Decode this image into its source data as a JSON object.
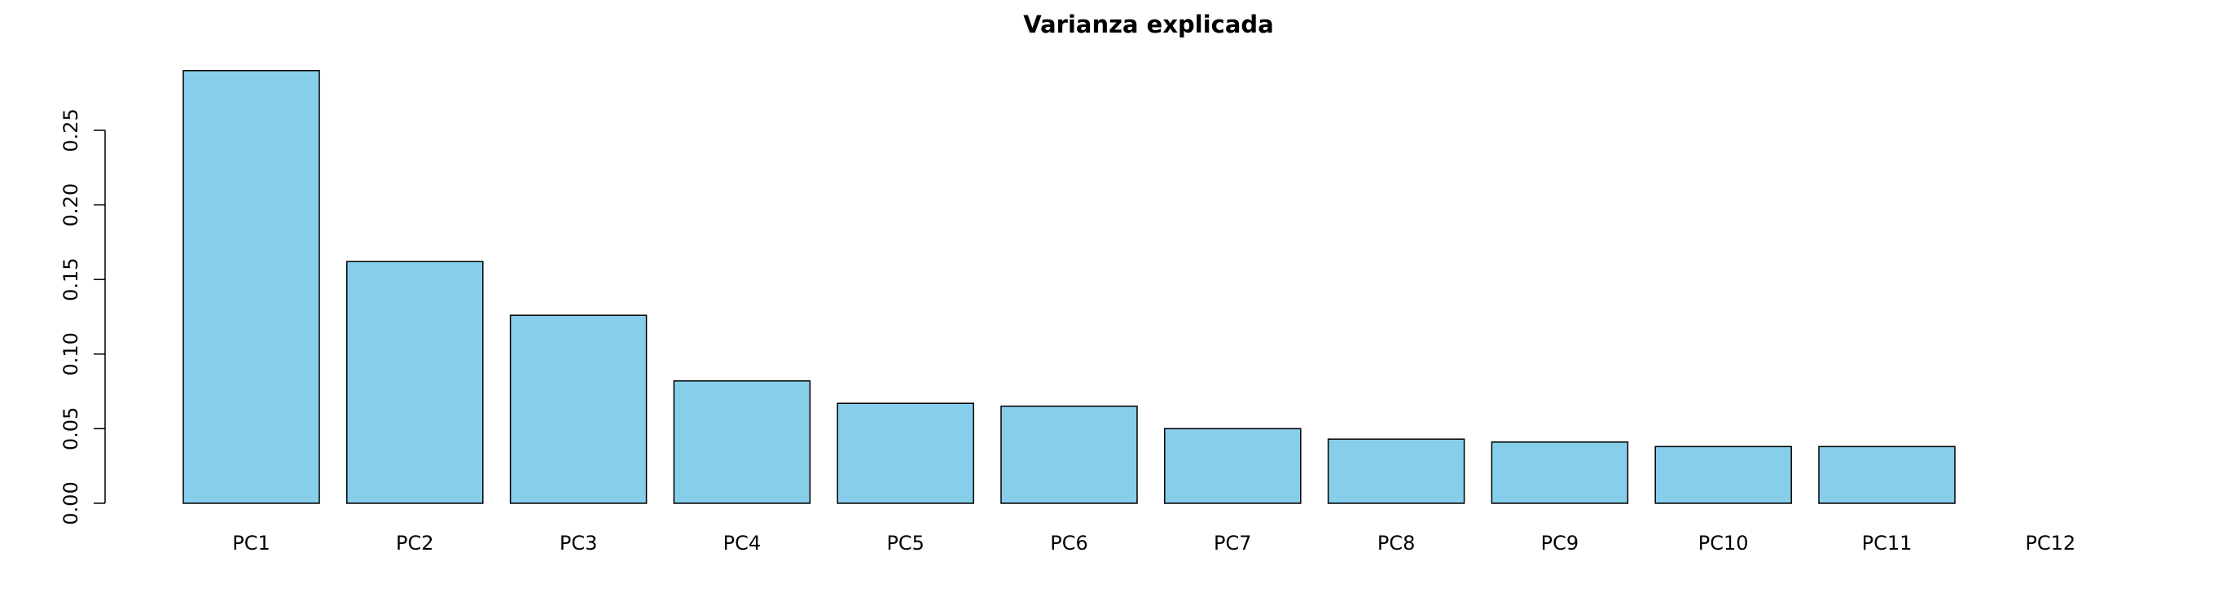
{
  "chart_data": {
    "type": "bar",
    "title": "Varianza explicada",
    "xlabel": "",
    "ylabel": "",
    "categories": [
      "PC1",
      "PC2",
      "PC3",
      "PC4",
      "PC5",
      "PC6",
      "PC7",
      "PC8",
      "PC9",
      "PC10",
      "PC11",
      "PC12"
    ],
    "values": [
      0.29,
      0.162,
      0.126,
      0.082,
      0.067,
      0.065,
      0.05,
      0.043,
      0.041,
      0.038,
      0.038,
      0.0
    ],
    "ylim": [
      0,
      0.29
    ],
    "yticks": [
      0.0,
      0.05,
      0.1,
      0.15,
      0.2,
      0.25
    ],
    "ytick_labels": [
      "0.00",
      "0.05",
      "0.10",
      "0.15",
      "0.20",
      "0.25"
    ],
    "bar_color": "#87CEEB",
    "bar_edge_color": "#000000",
    "grid": false,
    "legend": "none"
  }
}
